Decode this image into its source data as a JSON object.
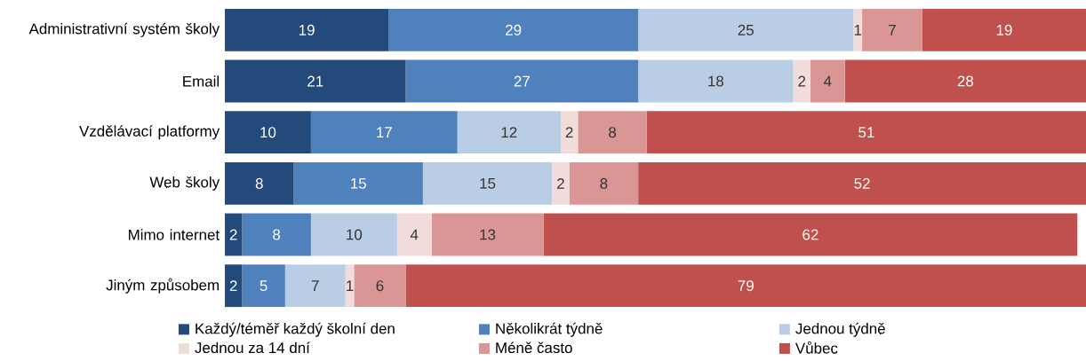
{
  "chart_data": {
    "type": "bar",
    "orientation": "horizontal",
    "stacked": true,
    "data_labels": true,
    "legend": "bottom",
    "tick_labels": "y",
    "xlim": [
      0,
      100
    ],
    "categories": [
      "Administrativní systém školy",
      "Email",
      "Vzdělávací platformy",
      "Web školy",
      "Mimo internet",
      "Jiným způsobem"
    ],
    "series": [
      {
        "name": "Každý/téměř každý školní den",
        "color": "#244a7c",
        "values": [
          19,
          21,
          10,
          8,
          2,
          2
        ]
      },
      {
        "name": "Několikrát týdně",
        "color": "#4f81bd",
        "values": [
          29,
          27,
          17,
          15,
          8,
          5
        ]
      },
      {
        "name": "Jednou týdně",
        "color": "#b9cde5",
        "values": [
          25,
          18,
          12,
          15,
          10,
          7
        ]
      },
      {
        "name": "Jednou za 14 dní",
        "color": "#f2dcdb",
        "values": [
          1,
          2,
          2,
          2,
          4,
          1
        ]
      },
      {
        "name": "Méně často",
        "color": "#d99694",
        "values": [
          7,
          4,
          8,
          8,
          13,
          6
        ]
      },
      {
        "name": "Vůbec",
        "color": "#c0504d",
        "values": [
          19,
          28,
          51,
          52,
          62,
          79
        ]
      }
    ]
  }
}
